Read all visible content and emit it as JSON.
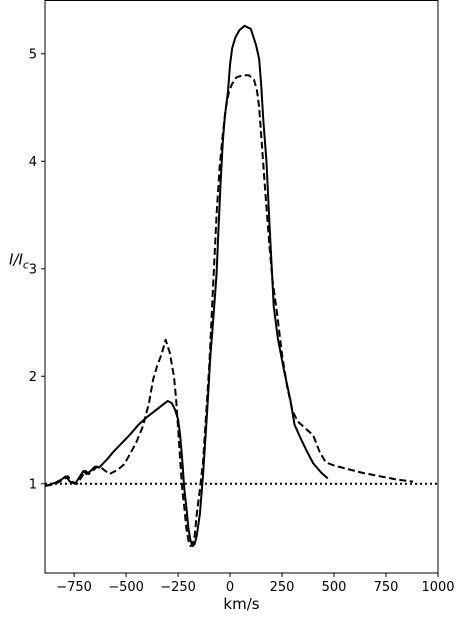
{
  "chart_data": {
    "type": "line",
    "title": "",
    "xlabel": "km/s",
    "ylabel": {
      "base": "I/I",
      "sub": "c"
    },
    "xlim": [
      -890,
      1000
    ],
    "ylim": [
      0.17,
      5.5
    ],
    "xticks": [
      -750,
      -500,
      -250,
      0,
      250,
      500,
      750,
      1000
    ],
    "xtick_labels": [
      "−750",
      "−500",
      "−250",
      "0",
      "250",
      "500",
      "750",
      "1000"
    ],
    "yticks": [
      1,
      2,
      3,
      4,
      5
    ],
    "ytick_labels": [
      "1",
      "2",
      "3",
      "4",
      "5"
    ],
    "grid": false,
    "series": [
      {
        "style": "solid",
        "color": "#000000",
        "x": [
          -890,
          -870,
          -840,
          -810,
          -790,
          -770,
          -745,
          -725,
          -705,
          -690,
          -670,
          -650,
          -630,
          -610,
          -590,
          -560,
          -520,
          -480,
          -440,
          -400,
          -360,
          -320,
          -300,
          -280,
          -265,
          -250,
          -240,
          -230,
          -220,
          -210,
          -200,
          -190,
          -180,
          -170,
          -160,
          -145,
          -130,
          -110,
          -95,
          -80,
          -65,
          -55,
          -45,
          -35,
          -25,
          -10,
          0,
          10,
          25,
          45,
          70,
          100,
          125,
          140,
          150,
          160,
          175,
          190,
          210,
          230,
          260,
          290,
          310,
          340,
          370,
          400,
          440,
          470
        ],
        "y": [
          0.98,
          0.99,
          1.01,
          1.04,
          1.07,
          1.02,
          1.0,
          1.06,
          1.12,
          1.09,
          1.12,
          1.16,
          1.15,
          1.19,
          1.23,
          1.3,
          1.38,
          1.46,
          1.55,
          1.62,
          1.68,
          1.74,
          1.77,
          1.75,
          1.69,
          1.6,
          1.45,
          1.22,
          0.95,
          0.78,
          0.58,
          0.47,
          0.42,
          0.44,
          0.52,
          0.72,
          1.08,
          1.68,
          2.18,
          2.55,
          2.95,
          3.4,
          3.82,
          4.18,
          4.42,
          4.65,
          4.9,
          5.05,
          5.15,
          5.22,
          5.26,
          5.23,
          5.08,
          4.95,
          4.7,
          4.38,
          4.0,
          3.4,
          2.65,
          2.35,
          2.05,
          1.78,
          1.55,
          1.42,
          1.3,
          1.19,
          1.1,
          1.05
        ]
      },
      {
        "style": "dashed",
        "color": "#000000",
        "x": [
          -890,
          -860,
          -830,
          -800,
          -780,
          -760,
          -735,
          -715,
          -695,
          -680,
          -660,
          -640,
          -620,
          -600,
          -580,
          -540,
          -510,
          -480,
          -450,
          -420,
          -390,
          -370,
          -350,
          -330,
          -310,
          -290,
          -270,
          -260,
          -250,
          -240,
          -230,
          -220,
          -210,
          -200,
          -190,
          -180,
          -170,
          -160,
          -145,
          -130,
          -120,
          -110,
          -100,
          -90,
          -80,
          -65,
          -50,
          -35,
          -20,
          -5,
          10,
          30,
          60,
          90,
          115,
          130,
          140,
          155,
          170,
          190,
          205,
          225,
          250,
          275,
          300,
          325,
          360,
          400,
          430,
          460,
          500,
          560,
          640,
          720,
          800,
          880
        ],
        "y": [
          0.98,
          0.99,
          1.01,
          1.04,
          1.07,
          1.02,
          1.0,
          1.06,
          1.12,
          1.09,
          1.12,
          1.16,
          1.15,
          1.12,
          1.09,
          1.13,
          1.18,
          1.28,
          1.39,
          1.53,
          1.75,
          1.97,
          2.1,
          2.2,
          2.34,
          2.22,
          2.0,
          1.8,
          1.52,
          1.22,
          0.95,
          0.78,
          0.58,
          0.47,
          0.42,
          0.44,
          0.52,
          0.72,
          0.95,
          1.2,
          1.5,
          1.8,
          2.1,
          2.5,
          2.9,
          3.5,
          3.95,
          4.25,
          4.5,
          4.65,
          4.72,
          4.78,
          4.8,
          4.8,
          4.76,
          4.65,
          4.5,
          4.1,
          3.7,
          3.2,
          2.88,
          2.6,
          2.2,
          1.9,
          1.68,
          1.58,
          1.52,
          1.45,
          1.3,
          1.2,
          1.17,
          1.14,
          1.1,
          1.07,
          1.04,
          1.02
        ]
      },
      {
        "style": "dotted",
        "color": "#000000",
        "x": [
          -890,
          1000
        ],
        "y": [
          1,
          1
        ]
      }
    ]
  }
}
